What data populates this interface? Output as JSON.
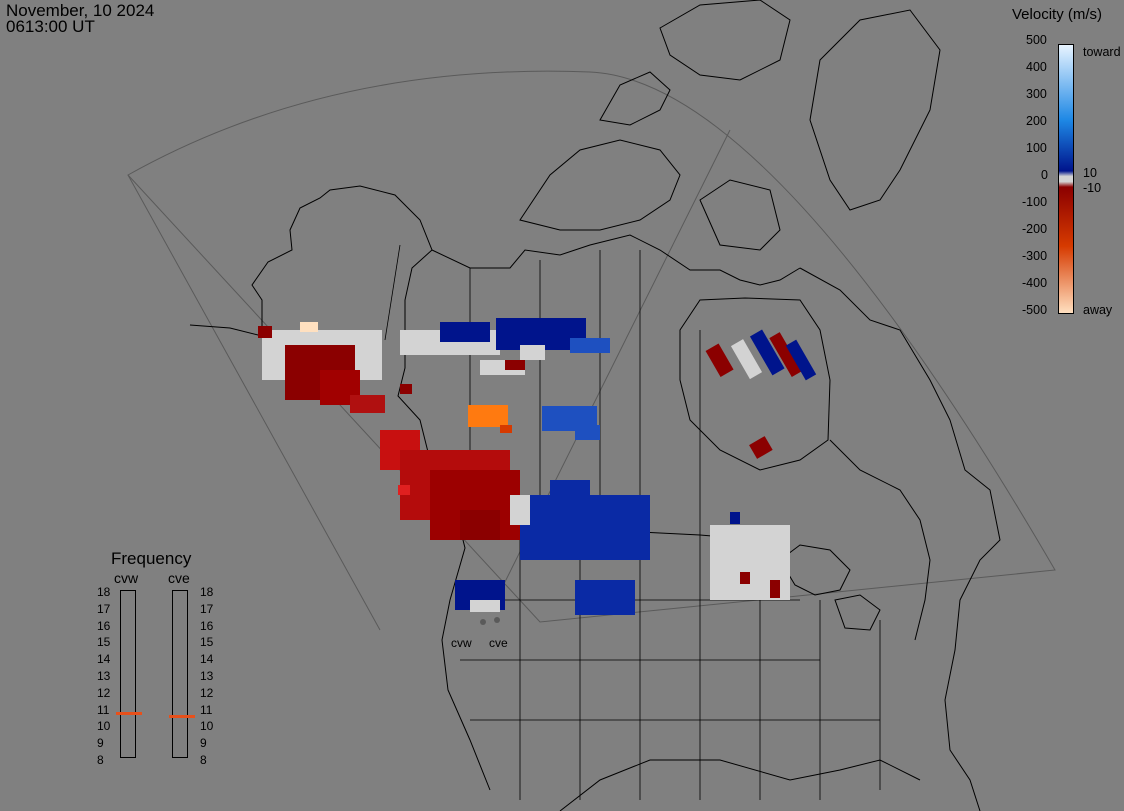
{
  "header": {
    "date": "November, 10 2024",
    "time": "0613:00 UT"
  },
  "velocity_scale": {
    "title": "Velocity (m/s)",
    "tick_labels": [
      "500",
      "400",
      "300",
      "200",
      "100",
      "10",
      "0",
      "-10",
      "-100",
      "-200",
      "-300",
      "-400",
      "-500"
    ],
    "toward_label": "toward",
    "away_label": "away",
    "colors": {
      "toward_max": "#e8f4ff",
      "toward_mid": "#1e88e5",
      "toward_low": "#00148c",
      "near_zero": "#d3d3d3",
      "away_low": "#8b0000",
      "away_mid": "#d63a00",
      "away_max": "#ffe0c0"
    }
  },
  "frequency": {
    "title": "Frequency",
    "radars": [
      {
        "name": "cvw",
        "value_mhz": 11
      },
      {
        "name": "cve",
        "value_mhz": 10.8
      }
    ],
    "scale_labels": [
      "18",
      "17",
      "16",
      "15",
      "14",
      "13",
      "12",
      "11",
      "10",
      "9",
      "8"
    ],
    "indicator_color": "#e8501a"
  },
  "sites": {
    "cvw_label": "cvw",
    "cve_label": "cve"
  },
  "map": {
    "background": "#808080",
    "line_color": "#000000",
    "fov_color": "#555555"
  }
}
